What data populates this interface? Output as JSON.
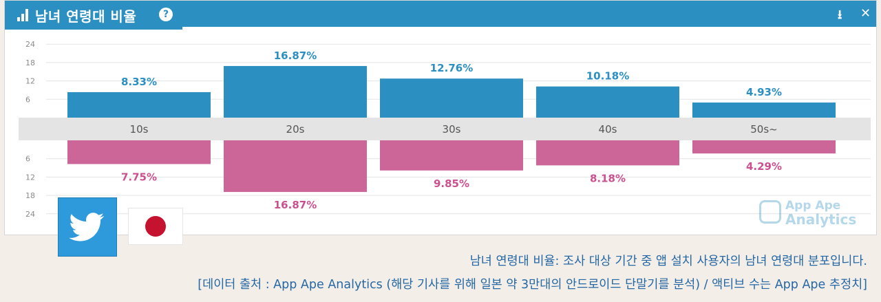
{
  "header": {
    "title": "남녀 연령대 비율",
    "help": "?",
    "download": "⭳",
    "close": "✕"
  },
  "chart_data": {
    "type": "bar",
    "categories": [
      "10s",
      "20s",
      "30s",
      "40s",
      "50s~"
    ],
    "series": [
      {
        "values": [
          8.33,
          16.87,
          12.76,
          10.18,
          4.93
        ],
        "labels": [
          "8.33%",
          "16.87%",
          "12.76%",
          "10.18%",
          "4.93%"
        ],
        "color": "#2b8fc2"
      },
      {
        "values": [
          7.75,
          16.87,
          9.85,
          8.18,
          4.29
        ],
        "labels": [
          "7.75%",
          "16.87%",
          "9.85%",
          "8.18%",
          "4.29%"
        ],
        "color": "#cc6699"
      }
    ],
    "top_ticks": [
      "24",
      "18",
      "12",
      "6"
    ],
    "bottom_ticks": [
      "6",
      "12",
      "18",
      "24"
    ],
    "ylim": [
      0,
      24
    ],
    "grid": true
  },
  "logo": {
    "line1": "App Ape",
    "line2": "Analytics"
  },
  "caption": {
    "line1": "남녀 연령대 비율: 조사 대상 기간 중 앱 설치 사용자의 남녀 연령대 분포입니다.",
    "line2": "[데이터 출처 : App Ape Analytics (해당 기사를 위해 일본 약 3만대의 안드로이드 단말기를 분석) / 액티브 수는 App Ape 추정치]"
  }
}
